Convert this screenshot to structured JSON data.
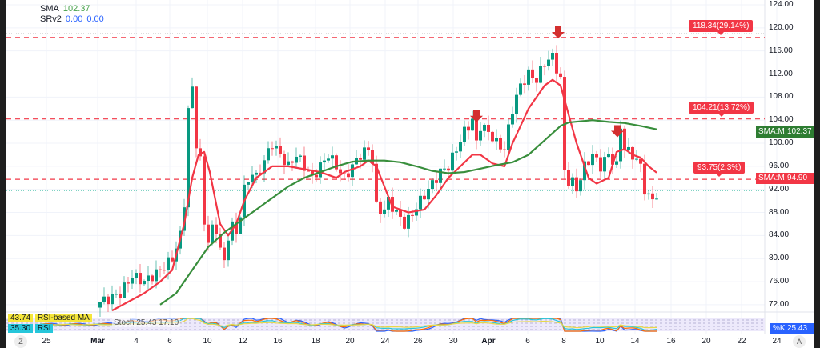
{
  "legend": {
    "sma_label": "SMA",
    "sma_value": "102.37",
    "srv_label": "SRv2",
    "srv_value1": "0.00",
    "srv_value2": "0.00"
  },
  "levels": [
    {
      "price": 118.34,
      "label": "118.34(29.14%)"
    },
    {
      "price": 104.21,
      "label": "104.21(13.72%)"
    },
    {
      "price": 93.75,
      "label": "93.75(2.3%)"
    }
  ],
  "current_price_line": 91.75,
  "resistance_dotted": 119.0,
  "price_tags": [
    {
      "name": "SMA:MA",
      "value": "102.37",
      "color": "#2e7d32"
    },
    {
      "name": "SMA:MA",
      "value": "94.90",
      "color": "#f23645"
    }
  ],
  "oscillator": {
    "rsi_ma_value": "43.74",
    "rsi_ma_label": "RSI-based MA",
    "rsi_value": "35.30",
    "rsi_label": "RSI",
    "stoch_text": "Stoch 25.43 17.10",
    "k_label": "%K",
    "k_value": "25.43"
  },
  "axis_button": "A",
  "zoom_button": "Z",
  "colors": {
    "up": "#089981",
    "down": "#f23645",
    "fast_ma": "#f23645",
    "slow_ma": "#388e3c",
    "level": "#f23645"
  },
  "chart_data": {
    "type": "candlestick",
    "title": "",
    "yticks": [
      "124.00",
      "120.00",
      "116.00",
      "112.00",
      "108.00",
      "104.00",
      "100.00",
      "96.00",
      "92.00",
      "88.00",
      "84.00",
      "80.00",
      "76.00",
      "72.00"
    ],
    "ylim": [
      71,
      124
    ],
    "xticks": [
      {
        "label": "25",
        "i": -13.4
      },
      {
        "label": "Mar",
        "i": -0.6
      },
      {
        "label": "4",
        "i": 9
      },
      {
        "label": "6",
        "i": 17.4
      },
      {
        "label": "10",
        "i": 26.8
      },
      {
        "label": "12",
        "i": 35.6
      },
      {
        "label": "16",
        "i": 44.4
      },
      {
        "label": "18",
        "i": 53.8
      },
      {
        "label": "20",
        "i": 62.4
      },
      {
        "label": "24",
        "i": 71.2
      },
      {
        "label": "26",
        "i": 79.4
      },
      {
        "label": "30",
        "i": 88.2
      },
      {
        "label": "Apr",
        "i": 97
      },
      {
        "label": "6",
        "i": 106.8
      },
      {
        "label": "8",
        "i": 115.8
      },
      {
        "label": "10",
        "i": 124.8
      },
      {
        "label": "14",
        "i": 133.6
      },
      {
        "label": "16",
        "i": 142.6
      },
      {
        "label": "20",
        "i": 151.4
      },
      {
        "label": "22",
        "i": 160.2
      },
      {
        "label": "24",
        "i": 169
      }
    ],
    "candles_count": 140,
    "price_path": [
      [
        0,
        72.5
      ],
      [
        2,
        73
      ],
      [
        5,
        74
      ],
      [
        8,
        77
      ],
      [
        11,
        76
      ],
      [
        15,
        78
      ],
      [
        18,
        80
      ],
      [
        20,
        84
      ],
      [
        21.4,
        92
      ],
      [
        22.4,
        115
      ],
      [
        24,
        100
      ],
      [
        25,
        97
      ],
      [
        25.6,
        94
      ],
      [
        26.2,
        82
      ],
      [
        27.4,
        84
      ],
      [
        28.6,
        86
      ],
      [
        30,
        82
      ],
      [
        31,
        79
      ],
      [
        32,
        84
      ],
      [
        33,
        86
      ],
      [
        34,
        84
      ],
      [
        35,
        88
      ],
      [
        36,
        92
      ],
      [
        38,
        95
      ],
      [
        39,
        94
      ],
      [
        41,
        97
      ],
      [
        43,
        100
      ],
      [
        45,
        98
      ],
      [
        47,
        96
      ],
      [
        49,
        98
      ],
      [
        51,
        96
      ],
      [
        53,
        94
      ],
      [
        55,
        96
      ],
      [
        57,
        98
      ],
      [
        59,
        96
      ],
      [
        61,
        94
      ],
      [
        63,
        96
      ],
      [
        65,
        98
      ],
      [
        67,
        99
      ],
      [
        68,
        97
      ],
      [
        69,
        89
      ],
      [
        70.6,
        88
      ],
      [
        72,
        90
      ],
      [
        74,
        88
      ],
      [
        76,
        86
      ],
      [
        77.4,
        87
      ],
      [
        79,
        89
      ],
      [
        81,
        91
      ],
      [
        83,
        93
      ],
      [
        85,
        95
      ],
      [
        87,
        96
      ],
      [
        89,
        99
      ],
      [
        91,
        102
      ],
      [
        93,
        104
      ],
      [
        94,
        100
      ],
      [
        95,
        103
      ],
      [
        97,
        102
      ],
      [
        99,
        100
      ],
      [
        101,
        99
      ],
      [
        103,
        106
      ],
      [
        105,
        110
      ],
      [
        107,
        112
      ],
      [
        109,
        111
      ],
      [
        111,
        114
      ],
      [
        113,
        115
      ],
      [
        114,
        113
      ],
      [
        115,
        111
      ],
      [
        116.2,
        92
      ],
      [
        117.4,
        94
      ],
      [
        119,
        92
      ],
      [
        121,
        96
      ],
      [
        123,
        98
      ],
      [
        125,
        96
      ],
      [
        127,
        98
      ],
      [
        129,
        96
      ],
      [
        130,
        103
      ],
      [
        131,
        99
      ],
      [
        133,
        98
      ],
      [
        135,
        96
      ],
      [
        136,
        92
      ],
      [
        137.4,
        90
      ],
      [
        139,
        91
      ]
    ],
    "series": [
      {
        "name": "SMA fast",
        "points": [
          [
            3,
            71
          ],
          [
            11,
            74
          ],
          [
            15,
            76
          ],
          [
            18,
            78
          ],
          [
            21,
            86
          ],
          [
            23,
            94
          ],
          [
            24.6,
            98
          ],
          [
            26,
            98.5
          ],
          [
            27.4,
            95
          ],
          [
            30,
            86
          ],
          [
            32,
            84
          ],
          [
            34,
            86
          ],
          [
            36,
            90
          ],
          [
            39,
            94
          ],
          [
            43,
            96
          ],
          [
            47,
            96
          ],
          [
            51,
            95.5
          ],
          [
            55,
            95
          ],
          [
            59,
            94
          ],
          [
            61,
            95
          ],
          [
            65,
            96
          ],
          [
            67,
            97
          ],
          [
            69,
            96
          ],
          [
            73,
            89
          ],
          [
            77,
            88
          ],
          [
            81,
            88.5
          ],
          [
            84,
            91
          ],
          [
            87,
            94
          ],
          [
            90,
            96
          ],
          [
            93,
            98
          ],
          [
            95,
            98
          ],
          [
            98,
            96.5
          ],
          [
            101,
            96
          ],
          [
            103,
            100
          ],
          [
            107,
            106
          ],
          [
            111,
            110
          ],
          [
            113,
            111
          ],
          [
            115,
            110
          ],
          [
            119,
            100
          ],
          [
            122,
            94
          ],
          [
            124,
            93
          ],
          [
            127,
            94
          ],
          [
            129,
            98.5
          ],
          [
            131,
            99
          ],
          [
            133,
            98
          ],
          [
            135,
            97.5
          ],
          [
            137,
            96
          ],
          [
            139,
            94.9
          ]
        ]
      },
      {
        "name": "SMA slow",
        "points": [
          [
            15,
            72
          ],
          [
            19,
            74
          ],
          [
            23,
            78
          ],
          [
            27,
            82
          ],
          [
            31,
            84.5
          ],
          [
            35,
            86.5
          ],
          [
            39,
            88.5
          ],
          [
            43,
            90.5
          ],
          [
            47,
            92.5
          ],
          [
            51,
            94
          ],
          [
            55,
            95
          ],
          [
            59,
            96
          ],
          [
            63,
            96.8
          ],
          [
            67,
            97
          ],
          [
            71,
            97
          ],
          [
            75,
            96.7
          ],
          [
            79,
            96
          ],
          [
            83,
            95.2
          ],
          [
            87,
            94.8
          ],
          [
            91,
            95
          ],
          [
            95,
            95.6
          ],
          [
            99,
            96.2
          ],
          [
            103,
            96.7
          ],
          [
            107,
            98
          ],
          [
            111,
            100.5
          ],
          [
            115,
            103
          ],
          [
            117,
            103.6
          ],
          [
            123,
            104
          ],
          [
            127,
            103.7
          ],
          [
            131,
            103.5
          ],
          [
            135,
            103
          ],
          [
            139,
            102.4
          ]
        ]
      }
    ],
    "sell_arrows": [
      94,
      114.4,
      129.2
    ]
  }
}
